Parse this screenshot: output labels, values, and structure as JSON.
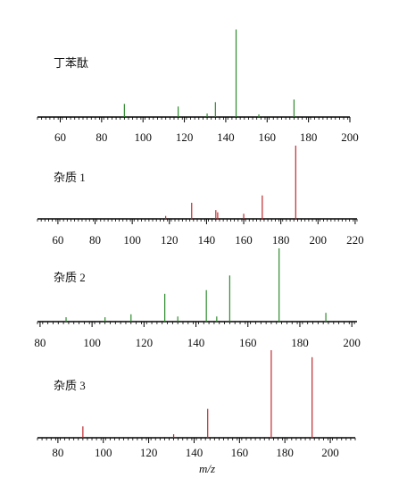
{
  "chart_data": [
    {
      "type": "stem",
      "title": "丁苯酞",
      "color": "#2e8b2e",
      "xlim": [
        49,
        200
      ],
      "ylim": [
        0,
        100
      ],
      "xticks": [
        60,
        80,
        100,
        120,
        140,
        160,
        180,
        200
      ],
      "x": [
        91,
        117,
        131,
        135,
        145,
        156,
        173
      ],
      "values": [
        15,
        12,
        4,
        17,
        100,
        3,
        20
      ]
    },
    {
      "type": "stem",
      "title": "杂质 1",
      "color": "#c0282d",
      "xlim": [
        49,
        221
      ],
      "ylim": [
        0,
        100
      ],
      "xticks": [
        60,
        80,
        100,
        120,
        140,
        160,
        180,
        200,
        220
      ],
      "x": [
        118,
        132,
        145,
        146,
        160,
        170,
        188
      ],
      "values": [
        4,
        22,
        12,
        9,
        7,
        32,
        100
      ]
    },
    {
      "type": "stem",
      "title": "杂质 2",
      "color": "#2e8b2e",
      "xlim": [
        79,
        202
      ],
      "ylim": [
        0,
        100
      ],
      "xticks": [
        80,
        100,
        120,
        140,
        160,
        180,
        200
      ],
      "x": [
        90,
        105,
        115,
        128,
        133,
        144,
        148,
        153,
        172,
        190
      ],
      "values": [
        6,
        6,
        10,
        38,
        7,
        43,
        7,
        63,
        100,
        12
      ]
    },
    {
      "type": "stem",
      "title": "杂质 3",
      "color": "#c0282d",
      "xlim": [
        71,
        211
      ],
      "ylim": [
        0,
        100
      ],
      "xticks": [
        80,
        100,
        120,
        140,
        160,
        180,
        200
      ],
      "xlabel": "m/z",
      "x": [
        91,
        131,
        146,
        174,
        192
      ],
      "values": [
        13,
        4,
        33,
        100,
        92
      ]
    }
  ]
}
